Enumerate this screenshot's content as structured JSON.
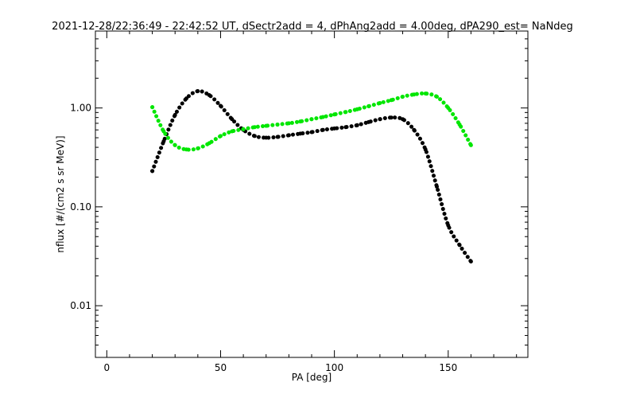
{
  "chart_data": {
    "type": "scatter",
    "title": "2021-12-28/22:36:49 - 22:42:52 UT, dSectr2add = 4, dPhAng2add = 4.00deg, dPA290_est=   NaNdeg",
    "xlabel": "PA [deg]",
    "ylabel": "nflux [#/(cm2 s sr MeV)]",
    "xlim": [
      -5,
      185
    ],
    "ylim": [
      0.003,
      6
    ],
    "yscale": "log",
    "grid": false,
    "x_ticks": [
      0,
      50,
      100,
      150
    ],
    "x_tick_labels": [
      "0",
      "50",
      "100",
      "150"
    ],
    "y_ticks": [
      0.01,
      0.1,
      1.0
    ],
    "y_tick_labels": [
      "0.01",
      "0.10",
      "1.00"
    ],
    "series": [
      {
        "color": "#000000",
        "x": [
          20,
          25,
          30,
          35,
          40,
          45,
          50,
          55,
          60,
          65,
          70,
          75,
          80,
          85,
          90,
          95,
          100,
          105,
          110,
          115,
          120,
          125,
          130,
          135,
          140,
          145,
          150,
          155,
          160
        ],
        "y": [
          0.23,
          0.46,
          0.85,
          1.25,
          1.48,
          1.35,
          1.05,
          0.77,
          0.6,
          0.52,
          0.5,
          0.51,
          0.53,
          0.55,
          0.57,
          0.6,
          0.62,
          0.64,
          0.67,
          0.72,
          0.77,
          0.8,
          0.77,
          0.6,
          0.38,
          0.16,
          0.065,
          0.041,
          0.028
        ]
      },
      {
        "color": "#00e600",
        "x": [
          20,
          25,
          30,
          35,
          40,
          45,
          50,
          55,
          60,
          65,
          70,
          75,
          80,
          85,
          90,
          95,
          100,
          105,
          110,
          115,
          120,
          125,
          130,
          135,
          140,
          145,
          150,
          155,
          160
        ],
        "y": [
          1.02,
          0.58,
          0.42,
          0.38,
          0.39,
          0.44,
          0.52,
          0.58,
          0.61,
          0.64,
          0.66,
          0.68,
          0.7,
          0.73,
          0.77,
          0.81,
          0.86,
          0.91,
          0.97,
          1.04,
          1.12,
          1.2,
          1.3,
          1.37,
          1.4,
          1.3,
          1.0,
          0.68,
          0.42
        ]
      }
    ]
  }
}
